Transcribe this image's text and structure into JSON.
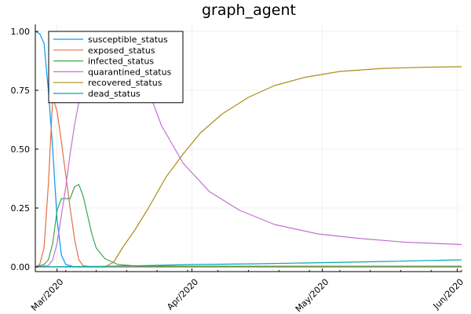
{
  "chart_data": {
    "type": "line",
    "title": "graph_agent",
    "xlabel": "",
    "ylabel": "",
    "x_ticks": [
      {
        "date": "2020-03-01",
        "label": "Mar/2020"
      },
      {
        "date": "2020-04-01",
        "label": "Apr/2020"
      },
      {
        "date": "2020-05-01",
        "label": "May/2020"
      },
      {
        "date": "2020-06-01",
        "label": "Jun/2020"
      }
    ],
    "xlim": [
      "2020-02-25",
      "2020-06-02"
    ],
    "y_ticks": [
      {
        "value": 0.0,
        "label": "0.00"
      },
      {
        "value": 0.25,
        "label": "0.25"
      },
      {
        "value": 0.5,
        "label": "0.50"
      },
      {
        "value": 0.75,
        "label": "0.75"
      },
      {
        "value": 1.0,
        "label": "1.00"
      }
    ],
    "ylim": [
      -0.02,
      1.03
    ],
    "grid": true,
    "legend_position": "top-left",
    "series": [
      {
        "name": "susceptible_status",
        "color": "#009AFA",
        "points": [
          [
            "2020-02-25",
            1.0
          ],
          [
            "2020-02-26",
            0.99
          ],
          [
            "2020-02-27",
            0.95
          ],
          [
            "2020-02-28",
            0.75
          ],
          [
            "2020-02-29",
            0.5
          ],
          [
            "2020-03-01",
            0.2
          ],
          [
            "2020-03-02",
            0.05
          ],
          [
            "2020-03-03",
            0.01
          ],
          [
            "2020-03-05",
            0.0
          ],
          [
            "2020-06-02",
            0.0
          ]
        ]
      },
      {
        "name": "exposed_status",
        "color": "#E36F47",
        "points": [
          [
            "2020-02-25",
            0.0
          ],
          [
            "2020-02-26",
            0.01
          ],
          [
            "2020-02-27",
            0.08
          ],
          [
            "2020-02-28",
            0.35
          ],
          [
            "2020-02-29",
            0.72
          ],
          [
            "2020-03-01",
            0.66
          ],
          [
            "2020-03-02",
            0.53
          ],
          [
            "2020-03-03",
            0.39
          ],
          [
            "2020-03-04",
            0.25
          ],
          [
            "2020-03-05",
            0.12
          ],
          [
            "2020-03-06",
            0.03
          ],
          [
            "2020-03-07",
            0.005
          ],
          [
            "2020-03-09",
            0.0
          ],
          [
            "2020-06-02",
            0.0
          ]
        ]
      },
      {
        "name": "infected_status",
        "color": "#3EA44E",
        "points": [
          [
            "2020-02-25",
            0.0
          ],
          [
            "2020-02-27",
            0.01
          ],
          [
            "2020-02-28",
            0.03
          ],
          [
            "2020-02-29",
            0.1
          ],
          [
            "2020-03-01",
            0.24
          ],
          [
            "2020-03-02",
            0.29
          ],
          [
            "2020-03-04",
            0.29
          ],
          [
            "2020-03-05",
            0.34
          ],
          [
            "2020-03-06",
            0.35
          ],
          [
            "2020-03-07",
            0.3
          ],
          [
            "2020-03-08",
            0.22
          ],
          [
            "2020-03-09",
            0.14
          ],
          [
            "2020-03-10",
            0.08
          ],
          [
            "2020-03-12",
            0.035
          ],
          [
            "2020-03-15",
            0.01
          ],
          [
            "2020-03-20",
            0.003
          ],
          [
            "2020-04-01",
            0.003
          ],
          [
            "2020-06-02",
            0.003
          ]
        ]
      },
      {
        "name": "quarantined_status",
        "color": "#C271D2",
        "points": [
          [
            "2020-02-25",
            0.0
          ],
          [
            "2020-02-28",
            0.005
          ],
          [
            "2020-02-29",
            0.03
          ],
          [
            "2020-03-01",
            0.1
          ],
          [
            "2020-03-02",
            0.22
          ],
          [
            "2020-03-03",
            0.34
          ],
          [
            "2020-03-04",
            0.48
          ],
          [
            "2020-03-05",
            0.6
          ],
          [
            "2020-03-06",
            0.7
          ],
          [
            "2020-03-07",
            0.78
          ],
          [
            "2020-03-22",
            0.75
          ],
          [
            "2020-03-25",
            0.6
          ],
          [
            "2020-03-30",
            0.44
          ],
          [
            "2020-04-05",
            0.32
          ],
          [
            "2020-04-12",
            0.24
          ],
          [
            "2020-04-20",
            0.18
          ],
          [
            "2020-04-30",
            0.14
          ],
          [
            "2020-05-10",
            0.12
          ],
          [
            "2020-05-20",
            0.105
          ],
          [
            "2020-06-02",
            0.095
          ]
        ]
      },
      {
        "name": "recovered_status",
        "color": "#AC8D18",
        "points": [
          [
            "2020-02-25",
            0.0
          ],
          [
            "2020-03-12",
            0.0
          ],
          [
            "2020-03-14",
            0.02
          ],
          [
            "2020-03-16",
            0.08
          ],
          [
            "2020-03-19",
            0.16
          ],
          [
            "2020-03-22",
            0.25
          ],
          [
            "2020-03-26",
            0.38
          ],
          [
            "2020-03-30",
            0.48
          ],
          [
            "2020-04-03",
            0.57
          ],
          [
            "2020-04-08",
            0.65
          ],
          [
            "2020-04-14",
            0.72
          ],
          [
            "2020-04-20",
            0.77
          ],
          [
            "2020-04-27",
            0.805
          ],
          [
            "2020-05-05",
            0.83
          ],
          [
            "2020-05-15",
            0.843
          ],
          [
            "2020-05-25",
            0.848
          ],
          [
            "2020-06-02",
            0.85
          ]
        ]
      },
      {
        "name": "dead_status",
        "color": "#00A9AD",
        "points": [
          [
            "2020-02-25",
            0.0
          ],
          [
            "2020-03-10",
            0.002
          ],
          [
            "2020-03-20",
            0.005
          ],
          [
            "2020-04-01",
            0.01
          ],
          [
            "2020-04-15",
            0.013
          ],
          [
            "2020-05-01",
            0.018
          ],
          [
            "2020-05-15",
            0.023
          ],
          [
            "2020-06-02",
            0.03
          ]
        ]
      }
    ]
  }
}
